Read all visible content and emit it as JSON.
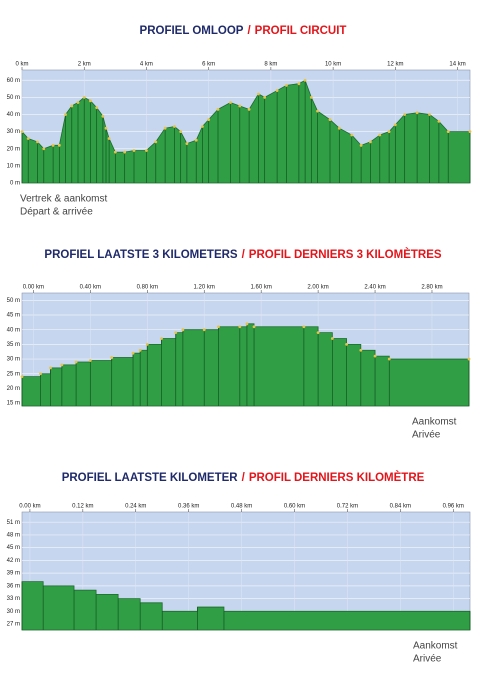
{
  "chart_data": [
    {
      "type": "area",
      "title": "PROFIEL OMLOOP",
      "title_separator": "/",
      "title_fr": "PROFIL CIRCUIT",
      "x": [
        0,
        0.2,
        0.5,
        0.7,
        1.0,
        1.2,
        1.4,
        1.6,
        1.8,
        2.0,
        2.2,
        2.4,
        2.6,
        2.7,
        2.8,
        3.0,
        3.3,
        3.6,
        4.0,
        4.3,
        4.6,
        4.9,
        5.1,
        5.3,
        5.6,
        5.8,
        6.0,
        6.3,
        6.7,
        7.0,
        7.3,
        7.6,
        7.8,
        8.2,
        8.5,
        8.9,
        9.1,
        9.3,
        9.5,
        9.9,
        10.2,
        10.6,
        10.9,
        11.2,
        11.5,
        11.8,
        12.0,
        12.3,
        12.7,
        13.1,
        13.4,
        13.7,
        14.4
      ],
      "values": [
        30,
        26,
        24,
        20,
        22,
        22,
        40,
        45,
        47,
        50,
        48,
        44,
        39,
        32,
        26,
        18,
        18,
        19,
        19,
        24,
        32,
        33,
        30,
        23,
        25,
        33,
        37,
        43,
        47,
        45,
        43,
        52,
        50,
        54,
        57,
        58,
        60,
        50,
        42,
        37,
        32,
        28,
        22,
        24,
        28,
        30,
        34,
        40,
        41,
        40,
        36,
        30,
        30
      ],
      "xlim": [
        0,
        14.4
      ],
      "ylim": [
        0,
        66
      ],
      "xticks": [
        {
          "value": 0,
          "label": "0 km"
        },
        {
          "value": 2,
          "label": "2 km"
        },
        {
          "value": 4,
          "label": "4 km"
        },
        {
          "value": 6,
          "label": "6 km"
        },
        {
          "value": 8,
          "label": "8 km"
        },
        {
          "value": 10,
          "label": "10 km"
        },
        {
          "value": 12,
          "label": "12 km"
        },
        {
          "value": 14,
          "label": "14 km"
        }
      ],
      "yticks": [
        {
          "value": 60,
          "label": "60 m"
        },
        {
          "value": 50,
          "label": "50 m"
        },
        {
          "value": 40,
          "label": "40 m"
        },
        {
          "value": 30,
          "label": "30 m"
        },
        {
          "value": 20,
          "label": "20 m"
        },
        {
          "value": 10,
          "label": "10 m"
        },
        {
          "value": 0,
          "label": "0 m"
        }
      ],
      "step": false,
      "grid": true,
      "color": "#2f9e44",
      "background": "#c7d6ef",
      "markers": true,
      "marker_color": "#e8c34a",
      "annotations": [
        "Vertrek & aankomst",
        "Départ & arrivée"
      ],
      "annotation_position": "bottom-left"
    },
    {
      "type": "area",
      "title": "PROFIEL LAATSTE 3 KILOMETERS",
      "title_separator": "/",
      "title_fr": "PROFIL DERNIERS 3 KILOMÈTRES",
      "x": [
        -0.08,
        0.05,
        0.12,
        0.2,
        0.3,
        0.4,
        0.55,
        0.7,
        0.75,
        0.8,
        0.9,
        1.0,
        1.05,
        1.2,
        1.3,
        1.45,
        1.5,
        1.55,
        1.9,
        2.0,
        2.1,
        2.2,
        2.3,
        2.4,
        2.5,
        3.06
      ],
      "values": [
        24,
        25,
        27,
        28,
        29,
        29.5,
        30.5,
        32,
        33,
        35,
        37,
        39,
        40,
        40,
        41,
        41,
        42,
        41,
        41,
        39,
        37,
        35,
        33,
        31,
        30,
        30
      ],
      "xlim": [
        -0.08,
        3.06
      ],
      "ylim": [
        14,
        52.5
      ],
      "xticks": [
        {
          "value": 0,
          "label": "0.00 km"
        },
        {
          "value": 0.4,
          "label": "0.40 km"
        },
        {
          "value": 0.8,
          "label": "0.80 km"
        },
        {
          "value": 1.2,
          "label": "1.20 km"
        },
        {
          "value": 1.6,
          "label": "1.60 km"
        },
        {
          "value": 2.0,
          "label": "2.00 km"
        },
        {
          "value": 2.4,
          "label": "2.40 km"
        },
        {
          "value": 2.8,
          "label": "2.80 km"
        }
      ],
      "yticks": [
        {
          "value": 50,
          "label": "50 m"
        },
        {
          "value": 45,
          "label": "45 m"
        },
        {
          "value": 40,
          "label": "40 m"
        },
        {
          "value": 35,
          "label": "35 m"
        },
        {
          "value": 30,
          "label": "30 m"
        },
        {
          "value": 25,
          "label": "25 m"
        },
        {
          "value": 20,
          "label": "20 m"
        },
        {
          "value": 15,
          "label": "15 m"
        }
      ],
      "step": true,
      "grid": true,
      "color": "#2f9e44",
      "background": "#c7d6ef",
      "markers": true,
      "marker_color": "#e8c34a",
      "annotations": [
        "Aankomst",
        "Arivée"
      ],
      "annotation_position": "bottom-right"
    },
    {
      "type": "area",
      "title": "PROFIEL LAATSTE  KILOMETER",
      "title_separator": "/",
      "title_fr": "PROFIL DERNIERS  KILOMÈTRE",
      "x": [
        -0.018,
        0.03,
        0.1,
        0.15,
        0.2,
        0.25,
        0.3,
        0.38,
        0.44,
        0.998
      ],
      "values": [
        37,
        36,
        35,
        34,
        33,
        32,
        30,
        31,
        30,
        30
      ],
      "xlim": [
        -0.018,
        0.998
      ],
      "ylim": [
        25.6,
        53.4
      ],
      "xticks": [
        {
          "value": 0,
          "label": "0.00 km"
        },
        {
          "value": 0.12,
          "label": "0.12 km"
        },
        {
          "value": 0.24,
          "label": "0.24 km"
        },
        {
          "value": 0.36,
          "label": "0.36 km"
        },
        {
          "value": 0.48,
          "label": "0.48 km"
        },
        {
          "value": 0.6,
          "label": "0.60 km"
        },
        {
          "value": 0.72,
          "label": "0.72 km"
        },
        {
          "value": 0.84,
          "label": "0.84 km"
        },
        {
          "value": 0.96,
          "label": "0.96 km"
        }
      ],
      "yticks": [
        {
          "value": 51,
          "label": "51 m"
        },
        {
          "value": 48,
          "label": "48 m"
        },
        {
          "value": 45,
          "label": "45 m"
        },
        {
          "value": 42,
          "label": "42 m"
        },
        {
          "value": 39,
          "label": "39 m"
        },
        {
          "value": 36,
          "label": "36 m"
        },
        {
          "value": 33,
          "label": "33 m"
        },
        {
          "value": 30,
          "label": "30 m"
        },
        {
          "value": 27,
          "label": "27 m"
        }
      ],
      "step": true,
      "grid": true,
      "color": "#2f9e44",
      "background": "#c7d6ef",
      "markers": false,
      "marker_color": "#e8c34a",
      "annotations": [
        "Aankomst",
        "Arivée"
      ],
      "annotation_position": "bottom-right"
    }
  ]
}
